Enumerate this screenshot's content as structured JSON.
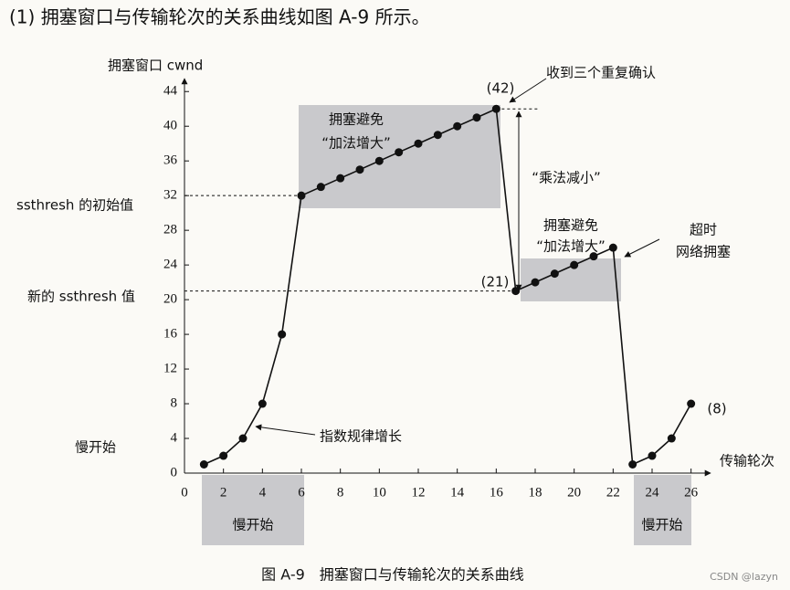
{
  "chart_data": {
    "type": "line",
    "title": "(1) 拥塞窗口与传输轮次的关系曲线如图 A-9 所示。",
    "caption": "图 A-9　拥塞窗口与传输轮次的关系曲线",
    "y_label": "拥塞窗口 cwnd",
    "x_label": "传输轮次",
    "x": [
      1,
      2,
      3,
      4,
      5,
      6,
      7,
      8,
      9,
      10,
      11,
      12,
      13,
      14,
      15,
      16,
      17,
      18,
      19,
      20,
      21,
      22,
      23,
      24,
      25,
      26
    ],
    "values": [
      1,
      2,
      4,
      8,
      16,
      32,
      33,
      34,
      35,
      36,
      37,
      38,
      39,
      40,
      41,
      42,
      21,
      22,
      23,
      24,
      25,
      26,
      1,
      2,
      4,
      8
    ],
    "color": "#111111",
    "xlim": [
      0,
      27
    ],
    "xticks": [
      0,
      2,
      4,
      6,
      8,
      10,
      12,
      14,
      16,
      18,
      20,
      22,
      24,
      26
    ],
    "ylim": [
      0,
      45.5
    ],
    "yticks": [
      0,
      4,
      8,
      12,
      16,
      20,
      24,
      28,
      32,
      36,
      40,
      44
    ],
    "annotations": [
      "收到三个重复确认",
      "(42)",
      "ssthresh 的初始值",
      "新的 ssthresh 值",
      "慢开始",
      "指数规律增长",
      "拥塞避免",
      "“加法增大”",
      "“乘法减小”",
      "拥塞避免",
      "“加法增大”",
      "(21)",
      "超时",
      "网络拥塞",
      "(8)",
      "慢开始",
      "慢开始"
    ],
    "watermark": "CSDN @lazyn"
  }
}
